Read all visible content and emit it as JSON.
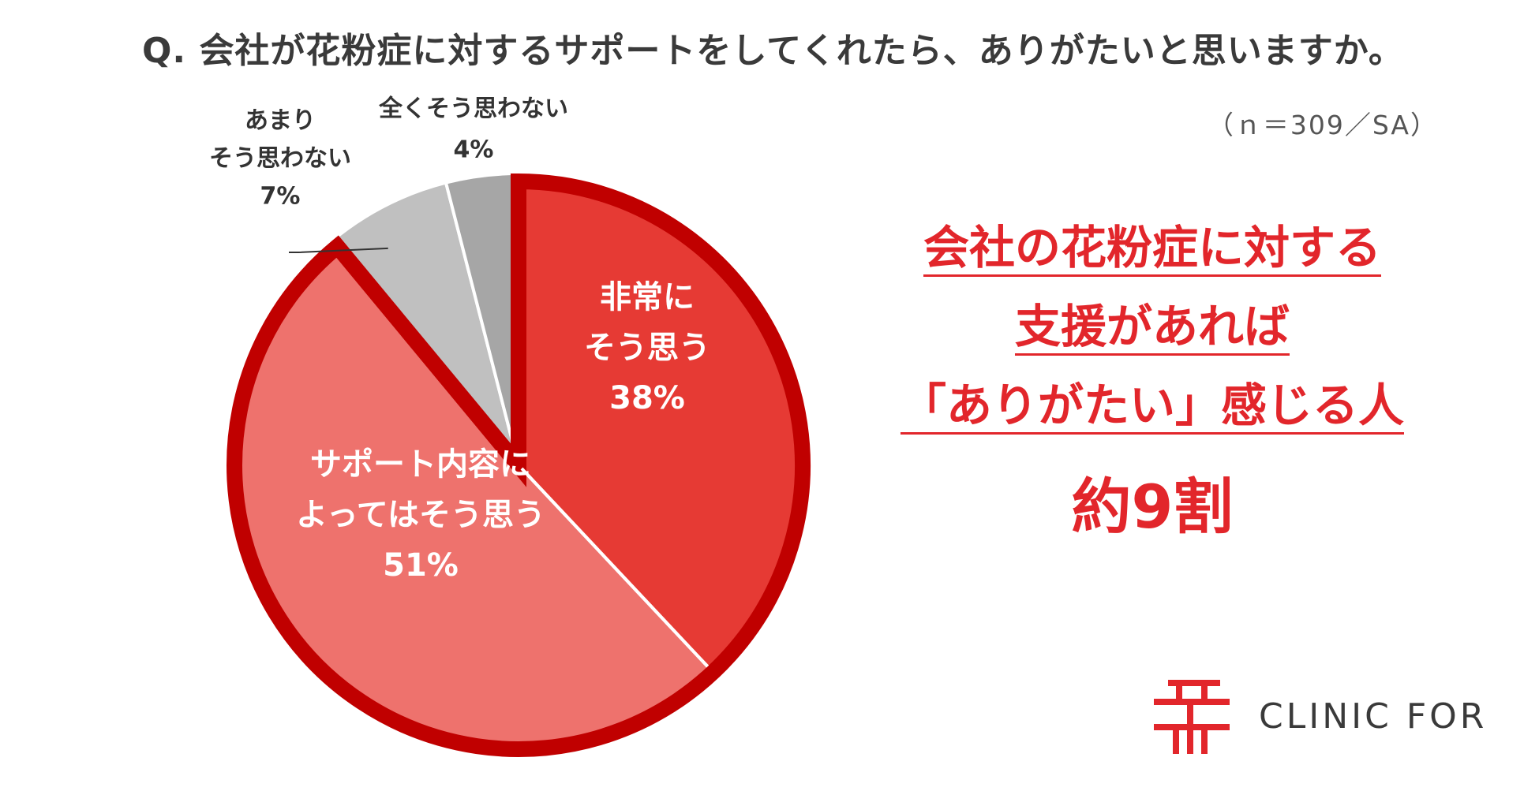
{
  "title": "Q.  会社が花粉症に対するサポートをしてくれたら、ありがたいと思いますか。",
  "sample_note": "（ｎ＝309／SA）",
  "chart_data": {
    "type": "pie",
    "title": "Q.  会社が花粉症に対するサポートをしてくれたら、ありがたいと思いますか。",
    "note": "（ｎ＝309／SA）",
    "slices": [
      {
        "label_lines": [
          "非常に",
          "そう思う"
        ],
        "value": 38,
        "value_label": "38%",
        "color": "#e63a34",
        "text_color": "#ffffff",
        "highlight": true
      },
      {
        "label_lines": [
          "サポート内容に",
          "よってはそう思う"
        ],
        "value": 51,
        "value_label": "51%",
        "color": "#ee726d",
        "text_color": "#ffffff",
        "highlight": true
      },
      {
        "label_lines": [
          "あまり",
          "そう思わない"
        ],
        "value": 7,
        "value_label": "7%",
        "color": "#c0c0c0",
        "text_color": "#333333",
        "highlight": false
      },
      {
        "label_lines": [
          "全くそう思わない"
        ],
        "value": 4,
        "value_label": "4%",
        "color": "#a6a6a6",
        "text_color": "#333333",
        "highlight": false
      }
    ],
    "highlight_outline_color": "#c00000"
  },
  "headline": {
    "lines": [
      "会社の花粉症に対する",
      "支援があれば",
      "「ありがたい」感じる人"
    ],
    "emphasis": "約9割",
    "color": "#e2262b"
  },
  "brand": {
    "name": "CLINIC FOR",
    "icon": "clinic-for-logo-icon",
    "color": "#e2262b"
  }
}
